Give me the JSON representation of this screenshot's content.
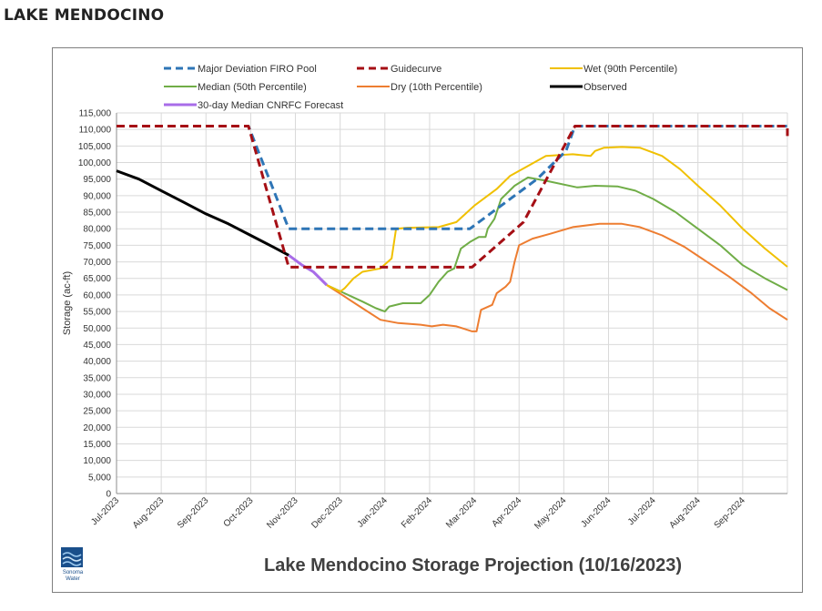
{
  "page": {
    "heading": "LAKE MENDOCINO"
  },
  "footer": {
    "title": "Lake Mendocino Storage Projection (10/16/2023)",
    "logo_line1": "Sonoma",
    "logo_line2": "Water"
  },
  "chart_data": {
    "type": "line",
    "title": "Lake Mendocino Storage Projection (10/16/2023)",
    "ylabel": "Storage (ac-ft)",
    "xlabel": "",
    "ylim": [
      0,
      115000
    ],
    "yticks": [
      0,
      5000,
      10000,
      15000,
      20000,
      25000,
      30000,
      35000,
      40000,
      45000,
      50000,
      55000,
      60000,
      65000,
      70000,
      75000,
      80000,
      85000,
      90000,
      95000,
      100000,
      105000,
      110000,
      115000
    ],
    "ytick_labels": [
      "0",
      "5,000",
      "10,000",
      "15,000",
      "20,000",
      "25,000",
      "30,000",
      "35,000",
      "40,000",
      "45,000",
      "50,000",
      "55,000",
      "60,000",
      "65,000",
      "70,000",
      "75,000",
      "80,000",
      "85,000",
      "90,000",
      "95,000",
      "100,000",
      "105,000",
      "110,000",
      "115,000"
    ],
    "x_range_months": [
      0,
      15
    ],
    "x_tick_labels": [
      "Jul-2023",
      "Aug-2023",
      "Sep-2023",
      "Oct-2023",
      "Nov-2023",
      "Dec-2023",
      "Jan-2024",
      "Feb-2024",
      "Mar-2024",
      "Apr-2024",
      "May-2024",
      "Jun-2024",
      "Jul-2024",
      "Aug-2024",
      "Sep-2024"
    ],
    "grid": true,
    "legend_position": "top",
    "series": [
      {
        "name": "Major Deviation FIRO Pool",
        "color": "#2e75b6",
        "style": "dashed",
        "width": 3,
        "points": [
          [
            0,
            111000
          ],
          [
            2.95,
            111000
          ],
          [
            3.85,
            80000
          ],
          [
            6.9,
            80000
          ],
          [
            7.9,
            80000
          ],
          [
            9.4,
            95000
          ],
          [
            10.05,
            103500
          ],
          [
            10.25,
            111000
          ],
          [
            15,
            111000
          ]
        ]
      },
      {
        "name": "Guidecurve",
        "color": "#a50f15",
        "style": "dashed",
        "width": 3,
        "points": [
          [
            0,
            111000
          ],
          [
            2.95,
            111000
          ],
          [
            3.85,
            68400
          ],
          [
            7.95,
            68400
          ],
          [
            9.1,
            82000
          ],
          [
            10.25,
            111000
          ],
          [
            15,
            111000
          ],
          [
            15,
            108000
          ]
        ]
      },
      {
        "name": "Wet (90th Percentile)",
        "color": "#f0c000",
        "style": "solid",
        "width": 2,
        "points": [
          [
            4.7,
            63000
          ],
          [
            5,
            61000
          ],
          [
            5.1,
            62000
          ],
          [
            5.3,
            65000
          ],
          [
            5.5,
            67000
          ],
          [
            5.9,
            68000
          ],
          [
            6.15,
            71000
          ],
          [
            6.25,
            80000
          ],
          [
            6.5,
            80300
          ],
          [
            7.2,
            80500
          ],
          [
            7.6,
            82000
          ],
          [
            8,
            87000
          ],
          [
            8.5,
            92000
          ],
          [
            8.8,
            96000
          ],
          [
            9.2,
            99000
          ],
          [
            9.6,
            102000
          ],
          [
            10.2,
            102500
          ],
          [
            10.6,
            102000
          ],
          [
            10.7,
            103500
          ],
          [
            10.9,
            104500
          ],
          [
            11.3,
            104700
          ],
          [
            11.7,
            104500
          ],
          [
            12.2,
            102000
          ],
          [
            12.6,
            98000
          ],
          [
            13,
            93000
          ],
          [
            13.5,
            87000
          ],
          [
            14,
            80000
          ],
          [
            14.5,
            74000
          ],
          [
            15,
            68500
          ]
        ]
      },
      {
        "name": "Median (50th Percentile)",
        "color": "#70ad47",
        "style": "solid",
        "width": 2,
        "points": [
          [
            4.7,
            63000
          ],
          [
            5.1,
            60500
          ],
          [
            5.5,
            58000
          ],
          [
            5.8,
            56000
          ],
          [
            6,
            55000
          ],
          [
            6.1,
            56500
          ],
          [
            6.4,
            57500
          ],
          [
            6.8,
            57500
          ],
          [
            7,
            60000
          ],
          [
            7.2,
            64000
          ],
          [
            7.4,
            67000
          ],
          [
            7.55,
            68000
          ],
          [
            7.7,
            74000
          ],
          [
            7.9,
            76000
          ],
          [
            8.1,
            77500
          ],
          [
            8.25,
            77500
          ],
          [
            8.3,
            80000
          ],
          [
            8.45,
            83000
          ],
          [
            8.6,
            89000
          ],
          [
            8.9,
            93000
          ],
          [
            9.2,
            95500
          ],
          [
            9.6,
            94500
          ],
          [
            10.3,
            92500
          ],
          [
            10.7,
            93000
          ],
          [
            11.2,
            92800
          ],
          [
            11.6,
            91500
          ],
          [
            12,
            89000
          ],
          [
            12.5,
            85000
          ],
          [
            13,
            80000
          ],
          [
            13.5,
            75000
          ],
          [
            14,
            69000
          ],
          [
            14.5,
            65000
          ],
          [
            15,
            61500
          ]
        ]
      },
      {
        "name": "Dry (10th Percentile)",
        "color": "#ed7d31",
        "style": "solid",
        "width": 2,
        "points": [
          [
            4.7,
            63000
          ],
          [
            5.1,
            59500
          ],
          [
            5.5,
            56000
          ],
          [
            5.9,
            52500
          ],
          [
            6.3,
            51500
          ],
          [
            6.8,
            51000
          ],
          [
            7.05,
            50500
          ],
          [
            7.3,
            51000
          ],
          [
            7.6,
            50500
          ],
          [
            7.95,
            49000
          ],
          [
            8.05,
            49000
          ],
          [
            8.15,
            55500
          ],
          [
            8.4,
            57000
          ],
          [
            8.5,
            60500
          ],
          [
            8.7,
            62500
          ],
          [
            8.8,
            64000
          ],
          [
            8.9,
            70000
          ],
          [
            9,
            75000
          ],
          [
            9.3,
            77000
          ],
          [
            9.7,
            78500
          ],
          [
            10.2,
            80500
          ],
          [
            10.8,
            81500
          ],
          [
            11.3,
            81500
          ],
          [
            11.7,
            80500
          ],
          [
            12.2,
            78000
          ],
          [
            12.7,
            74500
          ],
          [
            13.2,
            70000
          ],
          [
            13.7,
            65500
          ],
          [
            14.2,
            60500
          ],
          [
            14.6,
            56000
          ],
          [
            15,
            52500
          ]
        ]
      },
      {
        "name": "Observed",
        "color": "#000000",
        "style": "solid",
        "width": 3,
        "points": [
          [
            0,
            97500
          ],
          [
            0.5,
            95000
          ],
          [
            1,
            91500
          ],
          [
            1.5,
            88000
          ],
          [
            2,
            84500
          ],
          [
            2.5,
            81500
          ],
          [
            3,
            78000
          ],
          [
            3.5,
            74500
          ],
          [
            3.85,
            72000
          ]
        ]
      },
      {
        "name": "30-day Median CNRFC Forecast",
        "color": "#a86ce8",
        "style": "solid",
        "width": 3,
        "points": [
          [
            3.85,
            72000
          ],
          [
            4.15,
            69000
          ],
          [
            4.4,
            67000
          ],
          [
            4.7,
            63000
          ]
        ]
      }
    ]
  }
}
